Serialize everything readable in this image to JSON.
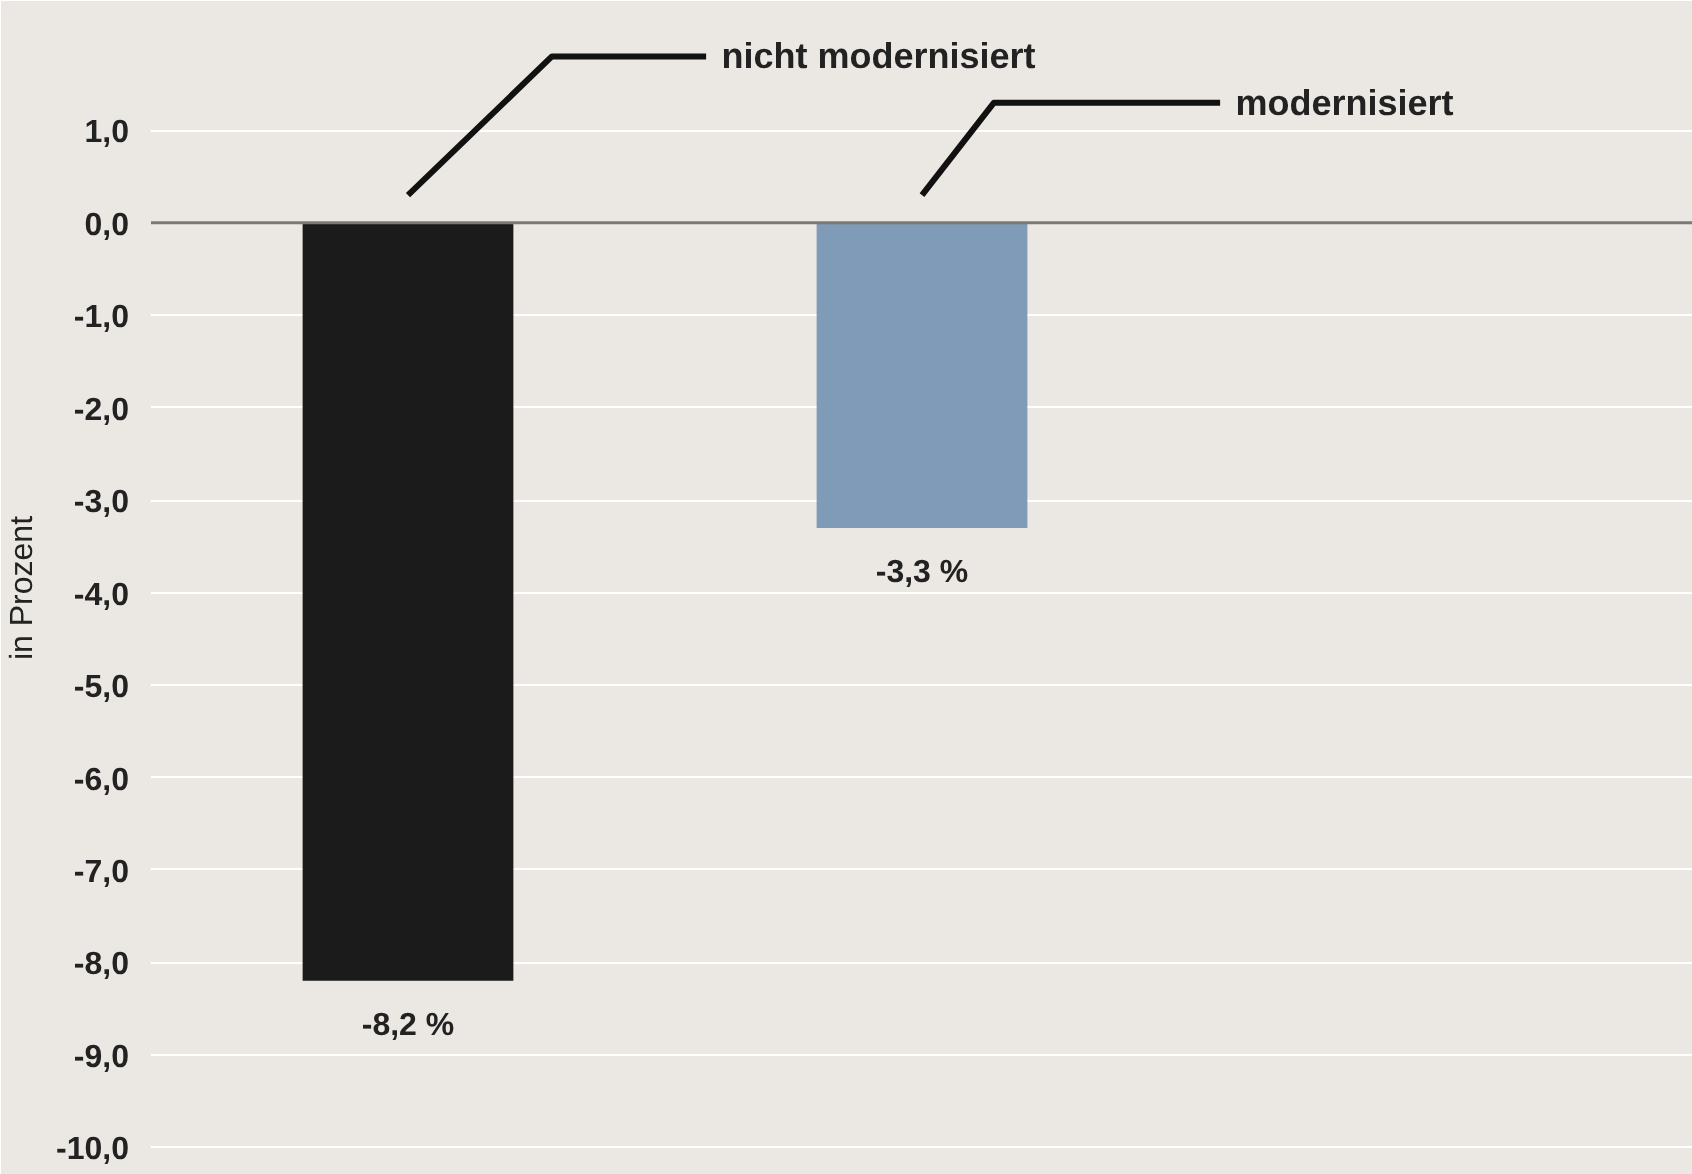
{
  "chart_data": {
    "type": "bar",
    "ylabel": "in Prozent",
    "categories": [
      null,
      null,
      null
    ],
    "values": [
      -8.2,
      -3.3,
      null
    ],
    "colors": [
      "#1b1b1b",
      "#7f9bb7",
      null
    ],
    "value_labels": [
      "-8,2 %",
      "-3,3 %",
      null
    ],
    "annotations": [
      "nicht modernisiert",
      "modernisiert"
    ],
    "ylim": [
      -10.3,
      2.4
    ],
    "yticks": [
      {
        "value": 1,
        "label": "1,0"
      },
      {
        "value": 0,
        "label": "0,0"
      },
      {
        "value": -1,
        "label": "-1,0"
      },
      {
        "value": -2,
        "label": "-2,0"
      },
      {
        "value": -3,
        "label": "-3,0"
      },
      {
        "value": -4,
        "label": "-4,0"
      },
      {
        "value": -5,
        "label": "-5,0"
      },
      {
        "value": -6,
        "label": "-6,0"
      },
      {
        "value": -7,
        "label": "-7,0"
      },
      {
        "value": -8,
        "label": "-8,0"
      },
      {
        "value": -9,
        "label": "-9,0"
      },
      {
        "value": -10,
        "label": "-10,0"
      }
    ],
    "ref_lines": [
      {
        "axis": "y",
        "value": 0,
        "color": "#7a7a7a"
      }
    ],
    "grid": "y",
    "tick_labels": "y"
  }
}
